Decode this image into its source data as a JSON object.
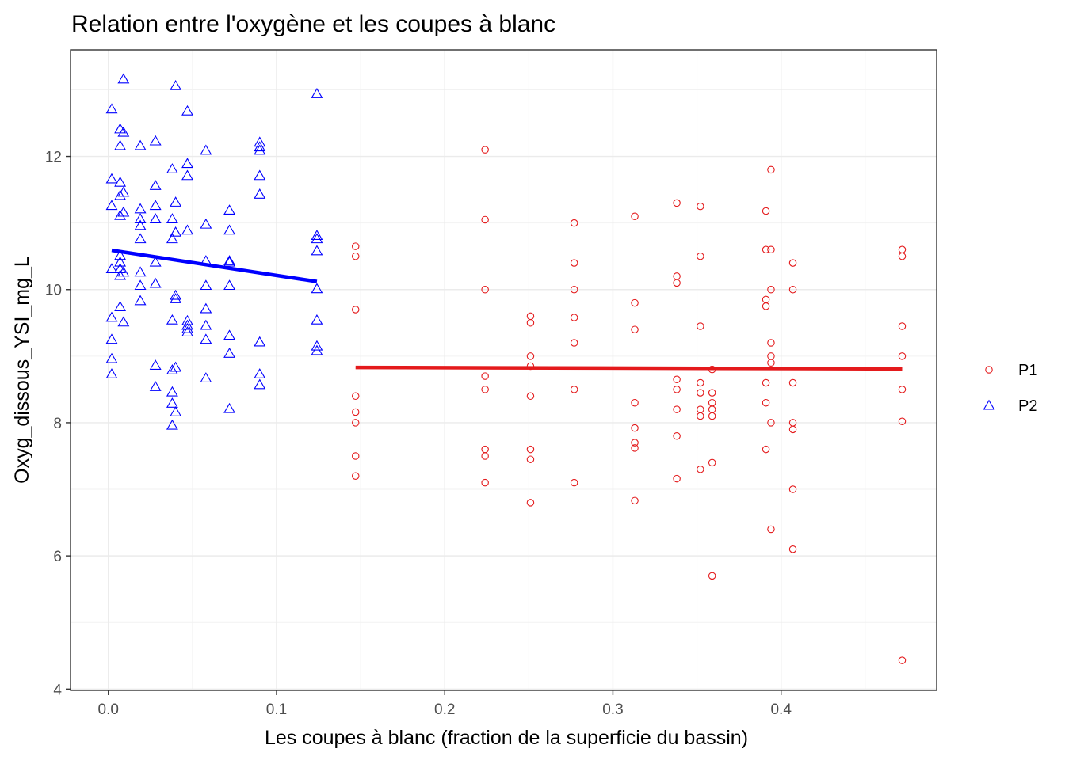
{
  "chart_data": {
    "type": "scatter",
    "title": "Relation entre l'oxygène et les coupes à blanc",
    "xlabel": "Les coupes à blanc (fraction de la superficie du bassin)",
    "ylabel": "Oxyg_dissous_YSI_mg_L",
    "xlim": [
      -0.0225,
      0.4925
    ],
    "ylim": [
      3.98,
      13.6
    ],
    "x_ticks": [
      0.0,
      0.1,
      0.2,
      0.3,
      0.4
    ],
    "x_tick_labels": [
      "0.0",
      "0.1",
      "0.2",
      "0.3",
      "0.4"
    ],
    "y_ticks": [
      4,
      6,
      8,
      10,
      12
    ],
    "y_tick_labels": [
      "4",
      "6",
      "8",
      "10",
      "12"
    ],
    "grid": true,
    "legend_position": "right",
    "series": [
      {
        "name": "P1",
        "shape": "circle",
        "color": "#e41a1c",
        "points": [
          [
            0.147,
            10.65
          ],
          [
            0.147,
            10.5
          ],
          [
            0.147,
            9.7
          ],
          [
            0.147,
            8.4
          ],
          [
            0.147,
            8.16
          ],
          [
            0.147,
            8.0
          ],
          [
            0.147,
            7.5
          ],
          [
            0.147,
            7.2
          ],
          [
            0.224,
            12.1
          ],
          [
            0.224,
            11.05
          ],
          [
            0.224,
            10.0
          ],
          [
            0.224,
            8.7
          ],
          [
            0.224,
            8.5
          ],
          [
            0.224,
            7.6
          ],
          [
            0.224,
            7.5
          ],
          [
            0.224,
            7.1
          ],
          [
            0.251,
            9.6
          ],
          [
            0.251,
            9.5
          ],
          [
            0.251,
            9.0
          ],
          [
            0.251,
            8.85
          ],
          [
            0.251,
            8.4
          ],
          [
            0.251,
            7.6
          ],
          [
            0.251,
            7.45
          ],
          [
            0.251,
            6.8
          ],
          [
            0.277,
            11.0
          ],
          [
            0.277,
            10.4
          ],
          [
            0.277,
            10.0
          ],
          [
            0.277,
            9.58
          ],
          [
            0.277,
            9.2
          ],
          [
            0.277,
            8.5
          ],
          [
            0.277,
            7.1
          ],
          [
            0.313,
            11.1
          ],
          [
            0.313,
            9.8
          ],
          [
            0.313,
            9.4
          ],
          [
            0.313,
            8.3
          ],
          [
            0.313,
            7.92
          ],
          [
            0.313,
            7.7
          ],
          [
            0.313,
            7.62
          ],
          [
            0.313,
            6.83
          ],
          [
            0.338,
            11.3
          ],
          [
            0.338,
            10.2
          ],
          [
            0.338,
            10.1
          ],
          [
            0.338,
            8.65
          ],
          [
            0.338,
            8.5
          ],
          [
            0.338,
            8.2
          ],
          [
            0.338,
            7.8
          ],
          [
            0.338,
            7.16
          ],
          [
            0.352,
            11.25
          ],
          [
            0.352,
            10.5
          ],
          [
            0.352,
            9.45
          ],
          [
            0.352,
            8.6
          ],
          [
            0.352,
            8.45
          ],
          [
            0.352,
            8.2
          ],
          [
            0.352,
            8.1
          ],
          [
            0.352,
            7.3
          ],
          [
            0.359,
            8.8
          ],
          [
            0.359,
            8.45
          ],
          [
            0.359,
            8.3
          ],
          [
            0.359,
            8.2
          ],
          [
            0.359,
            8.1
          ],
          [
            0.359,
            7.4
          ],
          [
            0.359,
            5.7
          ],
          [
            0.391,
            11.18
          ],
          [
            0.391,
            10.6
          ],
          [
            0.391,
            9.85
          ],
          [
            0.391,
            9.75
          ],
          [
            0.391,
            8.6
          ],
          [
            0.391,
            8.3
          ],
          [
            0.391,
            7.6
          ],
          [
            0.394,
            11.8
          ],
          [
            0.394,
            10.6
          ],
          [
            0.394,
            10.0
          ],
          [
            0.394,
            9.2
          ],
          [
            0.394,
            9.0
          ],
          [
            0.394,
            8.9
          ],
          [
            0.394,
            8.0
          ],
          [
            0.394,
            6.4
          ],
          [
            0.407,
            10.4
          ],
          [
            0.407,
            10.0
          ],
          [
            0.407,
            8.6
          ],
          [
            0.407,
            8.0
          ],
          [
            0.407,
            7.9
          ],
          [
            0.407,
            7.0
          ],
          [
            0.407,
            6.1
          ],
          [
            0.472,
            10.6
          ],
          [
            0.472,
            10.5
          ],
          [
            0.472,
            9.45
          ],
          [
            0.472,
            9.0
          ],
          [
            0.472,
            8.5
          ],
          [
            0.472,
            8.02
          ],
          [
            0.472,
            4.43
          ]
        ],
        "fit": {
          "x": [
            0.147,
            0.472
          ],
          "y": [
            8.83,
            8.81
          ]
        }
      },
      {
        "name": "P2",
        "shape": "triangle",
        "color": "#0000ff",
        "points": [
          [
            0.002,
            12.7
          ],
          [
            0.002,
            11.65
          ],
          [
            0.002,
            11.25
          ],
          [
            0.002,
            10.3
          ],
          [
            0.002,
            9.57
          ],
          [
            0.002,
            9.24
          ],
          [
            0.002,
            8.95
          ],
          [
            0.002,
            8.72
          ],
          [
            0.007,
            12.4
          ],
          [
            0.007,
            12.15
          ],
          [
            0.007,
            11.6
          ],
          [
            0.007,
            11.4
          ],
          [
            0.007,
            11.1
          ],
          [
            0.007,
            10.5
          ],
          [
            0.007,
            10.4
          ],
          [
            0.007,
            10.3
          ],
          [
            0.007,
            10.2
          ],
          [
            0.007,
            9.73
          ],
          [
            0.009,
            13.15
          ],
          [
            0.009,
            12.35
          ],
          [
            0.009,
            11.45
          ],
          [
            0.009,
            11.15
          ],
          [
            0.009,
            10.25
          ],
          [
            0.009,
            9.5
          ],
          [
            0.019,
            12.15
          ],
          [
            0.019,
            11.2
          ],
          [
            0.019,
            11.05
          ],
          [
            0.019,
            10.95
          ],
          [
            0.019,
            10.75
          ],
          [
            0.019,
            10.25
          ],
          [
            0.019,
            10.05
          ],
          [
            0.019,
            9.82
          ],
          [
            0.028,
            12.22
          ],
          [
            0.028,
            11.55
          ],
          [
            0.028,
            11.25
          ],
          [
            0.028,
            11.05
          ],
          [
            0.028,
            10.4
          ],
          [
            0.028,
            10.08
          ],
          [
            0.028,
            8.85
          ],
          [
            0.028,
            8.53
          ],
          [
            0.038,
            11.8
          ],
          [
            0.038,
            11.05
          ],
          [
            0.038,
            10.75
          ],
          [
            0.038,
            9.53
          ],
          [
            0.038,
            8.78
          ],
          [
            0.038,
            8.45
          ],
          [
            0.038,
            8.28
          ],
          [
            0.038,
            7.95
          ],
          [
            0.04,
            13.05
          ],
          [
            0.04,
            11.3
          ],
          [
            0.04,
            10.85
          ],
          [
            0.04,
            9.9
          ],
          [
            0.04,
            9.85
          ],
          [
            0.04,
            8.82
          ],
          [
            0.04,
            8.15
          ],
          [
            0.047,
            12.67
          ],
          [
            0.047,
            11.88
          ],
          [
            0.047,
            11.7
          ],
          [
            0.047,
            10.88
          ],
          [
            0.047,
            9.52
          ],
          [
            0.047,
            9.45
          ],
          [
            0.047,
            9.4
          ],
          [
            0.047,
            9.35
          ],
          [
            0.058,
            12.08
          ],
          [
            0.058,
            10.97
          ],
          [
            0.058,
            10.42
          ],
          [
            0.058,
            10.05
          ],
          [
            0.058,
            9.7
          ],
          [
            0.058,
            9.45
          ],
          [
            0.058,
            9.24
          ],
          [
            0.058,
            8.66
          ],
          [
            0.072,
            11.18
          ],
          [
            0.072,
            10.88
          ],
          [
            0.072,
            10.42
          ],
          [
            0.072,
            10.4
          ],
          [
            0.072,
            10.05
          ],
          [
            0.072,
            9.3
          ],
          [
            0.072,
            9.03
          ],
          [
            0.072,
            8.2
          ],
          [
            0.09,
            12.2
          ],
          [
            0.09,
            12.13
          ],
          [
            0.09,
            12.08
          ],
          [
            0.09,
            11.7
          ],
          [
            0.09,
            11.42
          ],
          [
            0.09,
            9.2
          ],
          [
            0.09,
            8.72
          ],
          [
            0.09,
            8.56
          ],
          [
            0.124,
            12.93
          ],
          [
            0.124,
            10.8
          ],
          [
            0.124,
            10.75
          ],
          [
            0.124,
            10.57
          ],
          [
            0.124,
            10.0
          ],
          [
            0.124,
            9.53
          ],
          [
            0.124,
            9.14
          ],
          [
            0.124,
            9.07
          ]
        ],
        "fit": {
          "x": [
            0.002,
            0.124
          ],
          "y": [
            10.59,
            10.12
          ]
        }
      }
    ]
  }
}
